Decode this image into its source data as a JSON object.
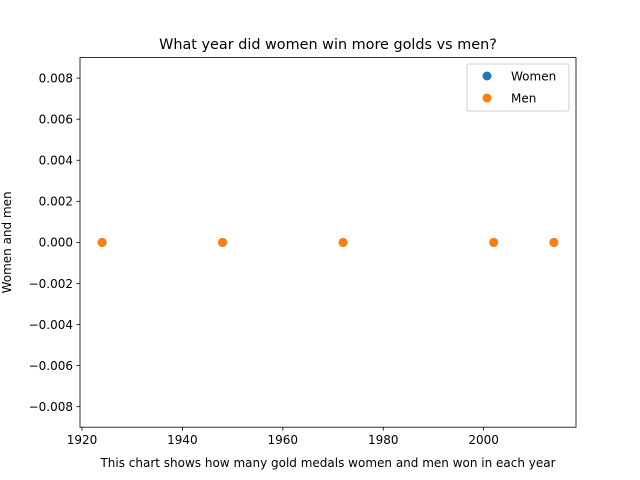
{
  "chart_data": {
    "type": "scatter",
    "title": "What year did women win more golds vs men?",
    "xlabel": "This chart shows how many gold medals women and men won in each year",
    "ylabel": "Women and men",
    "xlim": [
      1919.6,
      2018.4
    ],
    "ylim": [
      -0.009,
      0.009
    ],
    "x_ticks": [
      1920,
      1940,
      1960,
      1980,
      2000
    ],
    "x_tick_labels": [
      "1920",
      "1940",
      "1960",
      "1980",
      "2000"
    ],
    "y_ticks": [
      -0.008,
      -0.006,
      -0.004,
      -0.002,
      0.0,
      0.002,
      0.004,
      0.006,
      0.008
    ],
    "y_tick_labels": [
      "−0.008",
      "−0.006",
      "−0.004",
      "−0.002",
      "0.000",
      "0.002",
      "0.004",
      "0.006",
      "0.008"
    ],
    "grid": false,
    "legend_position": "top-right",
    "series": [
      {
        "name": "Women",
        "color": "#1f77b4",
        "x": [
          1924,
          1948,
          1972,
          2002,
          2014
        ],
        "y": [
          0,
          0,
          0,
          0,
          0
        ]
      },
      {
        "name": "Men",
        "color": "#ff7f0e",
        "x": [
          1924,
          1948,
          1972,
          2002,
          2014
        ],
        "y": [
          0,
          0,
          0,
          0,
          0
        ]
      }
    ]
  }
}
